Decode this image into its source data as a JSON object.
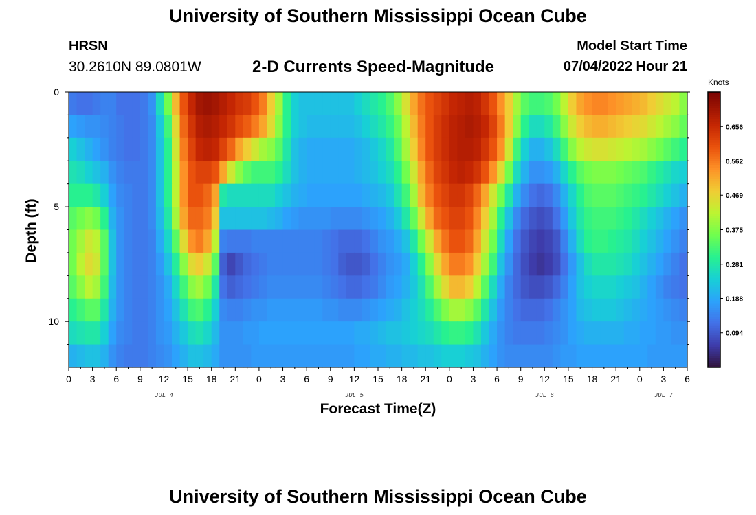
{
  "header": {
    "title": "University of Southern Mississippi Ocean Cube",
    "station": "HRSN",
    "coords": "30.2610N  89.0801W",
    "subtitle": "2-D Currents Speed-Magnitude",
    "start_label": "Model Start Time",
    "start_value": "07/04/2022 Hour 21"
  },
  "footer": {
    "title": "University of Southern Mississippi Ocean Cube"
  },
  "chart_data": {
    "type": "heatmap",
    "title": "2-D Currents Speed-Magnitude",
    "xlabel": "Forecast Time(Z)",
    "ylabel": "Depth (ft)",
    "x_range_hours": [
      0,
      78
    ],
    "y_range_ft": [
      0,
      12
    ],
    "x_tick_labels": [
      "0",
      "3",
      "6",
      "9",
      "12",
      "15",
      "18",
      "21",
      "0",
      "3",
      "6",
      "9",
      "12",
      "15",
      "18",
      "21",
      "0",
      "3",
      "6",
      "9",
      "12",
      "15",
      "18",
      "21",
      "0",
      "3",
      "6"
    ],
    "y_tick_values": [
      0,
      5,
      10
    ],
    "y_tick_labels": [
      "0",
      "5",
      "10"
    ],
    "date_labels": [
      {
        "text": "JUL 4",
        "hour": 12
      },
      {
        "text": "JUL 5",
        "hour": 36
      },
      {
        "text": "JUL 6",
        "hour": 60
      },
      {
        "text": "JUL 7",
        "hour": 75
      }
    ],
    "depth_bins_ft": [
      0.5,
      1.5,
      2.5,
      3.5,
      4.5,
      5.5,
      6.5,
      7.5,
      8.5,
      9.5,
      10.5,
      11.5
    ],
    "speed_knots": [
      [
        0.13,
        0.12,
        0.12,
        0.13,
        0.14,
        0.14,
        0.12,
        0.12,
        0.12,
        0.13,
        0.16,
        0.26,
        0.36,
        0.5,
        0.6,
        0.66,
        0.7,
        0.71,
        0.7,
        0.68,
        0.66,
        0.64,
        0.63,
        0.6,
        0.56,
        0.48,
        0.4,
        0.3,
        0.24,
        0.22,
        0.22,
        0.22,
        0.22,
        0.22,
        0.22,
        0.22,
        0.24,
        0.26,
        0.28,
        0.3,
        0.33,
        0.38,
        0.45,
        0.52,
        0.57,
        0.6,
        0.62,
        0.64,
        0.66,
        0.67,
        0.68,
        0.67,
        0.64,
        0.6,
        0.54,
        0.48,
        0.4,
        0.34,
        0.32,
        0.32,
        0.33,
        0.36,
        0.42,
        0.48,
        0.52,
        0.54,
        0.55,
        0.55,
        0.54,
        0.53,
        0.52,
        0.51,
        0.5,
        0.48,
        0.46,
        0.44,
        0.42,
        0.38
      ],
      [
        0.18,
        0.17,
        0.16,
        0.16,
        0.15,
        0.14,
        0.13,
        0.12,
        0.12,
        0.13,
        0.15,
        0.23,
        0.32,
        0.46,
        0.58,
        0.64,
        0.68,
        0.69,
        0.68,
        0.66,
        0.64,
        0.61,
        0.59,
        0.56,
        0.52,
        0.46,
        0.38,
        0.3,
        0.24,
        0.22,
        0.21,
        0.21,
        0.21,
        0.21,
        0.21,
        0.21,
        0.22,
        0.24,
        0.26,
        0.28,
        0.31,
        0.35,
        0.42,
        0.5,
        0.56,
        0.6,
        0.63,
        0.65,
        0.67,
        0.68,
        0.69,
        0.68,
        0.66,
        0.62,
        0.56,
        0.48,
        0.38,
        0.3,
        0.26,
        0.26,
        0.28,
        0.32,
        0.38,
        0.44,
        0.48,
        0.5,
        0.51,
        0.51,
        0.5,
        0.49,
        0.48,
        0.47,
        0.46,
        0.44,
        0.42,
        0.4,
        0.38,
        0.35
      ],
      [
        0.24,
        0.22,
        0.2,
        0.18,
        0.16,
        0.14,
        0.13,
        0.12,
        0.12,
        0.13,
        0.15,
        0.22,
        0.3,
        0.44,
        0.56,
        0.62,
        0.66,
        0.67,
        0.66,
        0.62,
        0.58,
        0.52,
        0.48,
        0.44,
        0.4,
        0.38,
        0.34,
        0.28,
        0.22,
        0.2,
        0.19,
        0.19,
        0.19,
        0.19,
        0.19,
        0.19,
        0.2,
        0.21,
        0.23,
        0.25,
        0.28,
        0.33,
        0.4,
        0.48,
        0.55,
        0.6,
        0.63,
        0.65,
        0.67,
        0.68,
        0.68,
        0.67,
        0.64,
        0.6,
        0.54,
        0.44,
        0.32,
        0.24,
        0.2,
        0.2,
        0.22,
        0.26,
        0.32,
        0.38,
        0.42,
        0.44,
        0.45,
        0.45,
        0.44,
        0.43,
        0.42,
        0.41,
        0.4,
        0.38,
        0.36,
        0.34,
        0.32,
        0.3
      ],
      [
        0.27,
        0.26,
        0.24,
        0.22,
        0.2,
        0.16,
        0.14,
        0.13,
        0.13,
        0.13,
        0.15,
        0.22,
        0.3,
        0.42,
        0.54,
        0.6,
        0.62,
        0.62,
        0.6,
        0.52,
        0.44,
        0.38,
        0.34,
        0.32,
        0.32,
        0.32,
        0.3,
        0.26,
        0.22,
        0.2,
        0.19,
        0.19,
        0.19,
        0.19,
        0.19,
        0.19,
        0.2,
        0.21,
        0.22,
        0.24,
        0.26,
        0.3,
        0.36,
        0.44,
        0.52,
        0.58,
        0.62,
        0.64,
        0.66,
        0.67,
        0.66,
        0.64,
        0.6,
        0.54,
        0.46,
        0.36,
        0.26,
        0.2,
        0.16,
        0.16,
        0.17,
        0.2,
        0.25,
        0.3,
        0.34,
        0.36,
        0.37,
        0.37,
        0.37,
        0.36,
        0.35,
        0.34,
        0.33,
        0.31,
        0.29,
        0.27,
        0.25,
        0.24
      ],
      [
        0.3,
        0.3,
        0.3,
        0.28,
        0.24,
        0.18,
        0.15,
        0.14,
        0.13,
        0.13,
        0.15,
        0.22,
        0.3,
        0.42,
        0.54,
        0.6,
        0.6,
        0.58,
        0.52,
        0.28,
        0.26,
        0.26,
        0.26,
        0.26,
        0.26,
        0.26,
        0.24,
        0.22,
        0.2,
        0.19,
        0.18,
        0.18,
        0.18,
        0.18,
        0.18,
        0.18,
        0.18,
        0.19,
        0.2,
        0.21,
        0.23,
        0.27,
        0.32,
        0.4,
        0.5,
        0.56,
        0.6,
        0.62,
        0.64,
        0.64,
        0.62,
        0.58,
        0.52,
        0.44,
        0.36,
        0.28,
        0.2,
        0.15,
        0.12,
        0.11,
        0.12,
        0.15,
        0.2,
        0.25,
        0.3,
        0.33,
        0.34,
        0.34,
        0.34,
        0.33,
        0.32,
        0.31,
        0.3,
        0.28,
        0.26,
        0.24,
        0.22,
        0.2
      ],
      [
        0.34,
        0.36,
        0.38,
        0.36,
        0.3,
        0.2,
        0.16,
        0.14,
        0.13,
        0.13,
        0.15,
        0.21,
        0.28,
        0.4,
        0.52,
        0.58,
        0.58,
        0.56,
        0.48,
        0.22,
        0.22,
        0.22,
        0.22,
        0.22,
        0.22,
        0.21,
        0.2,
        0.18,
        0.17,
        0.16,
        0.16,
        0.16,
        0.16,
        0.15,
        0.15,
        0.15,
        0.15,
        0.16,
        0.17,
        0.18,
        0.2,
        0.23,
        0.28,
        0.35,
        0.44,
        0.52,
        0.58,
        0.6,
        0.62,
        0.62,
        0.6,
        0.55,
        0.48,
        0.4,
        0.3,
        0.22,
        0.15,
        0.11,
        0.09,
        0.08,
        0.09,
        0.12,
        0.17,
        0.23,
        0.28,
        0.31,
        0.32,
        0.32,
        0.32,
        0.31,
        0.3,
        0.28,
        0.26,
        0.24,
        0.22,
        0.2,
        0.18,
        0.16
      ],
      [
        0.36,
        0.4,
        0.44,
        0.42,
        0.34,
        0.22,
        0.16,
        0.14,
        0.13,
        0.13,
        0.14,
        0.19,
        0.25,
        0.34,
        0.46,
        0.54,
        0.56,
        0.52,
        0.42,
        0.14,
        0.13,
        0.13,
        0.13,
        0.14,
        0.14,
        0.14,
        0.14,
        0.14,
        0.14,
        0.14,
        0.14,
        0.14,
        0.13,
        0.12,
        0.11,
        0.11,
        0.11,
        0.12,
        0.14,
        0.16,
        0.17,
        0.19,
        0.22,
        0.28,
        0.36,
        0.44,
        0.52,
        0.57,
        0.6,
        0.6,
        0.58,
        0.52,
        0.44,
        0.36,
        0.26,
        0.18,
        0.12,
        0.09,
        0.07,
        0.06,
        0.07,
        0.09,
        0.14,
        0.2,
        0.26,
        0.3,
        0.31,
        0.31,
        0.3,
        0.29,
        0.28,
        0.26,
        0.24,
        0.22,
        0.2,
        0.18,
        0.16,
        0.14
      ],
      [
        0.36,
        0.42,
        0.46,
        0.44,
        0.34,
        0.22,
        0.16,
        0.14,
        0.13,
        0.13,
        0.14,
        0.17,
        0.22,
        0.29,
        0.38,
        0.46,
        0.48,
        0.44,
        0.34,
        0.1,
        0.07,
        0.09,
        0.11,
        0.12,
        0.13,
        0.14,
        0.14,
        0.14,
        0.14,
        0.14,
        0.14,
        0.14,
        0.13,
        0.12,
        0.1,
        0.09,
        0.09,
        0.1,
        0.12,
        0.14,
        0.16,
        0.17,
        0.19,
        0.24,
        0.3,
        0.38,
        0.46,
        0.52,
        0.56,
        0.56,
        0.54,
        0.48,
        0.4,
        0.32,
        0.22,
        0.16,
        0.11,
        0.08,
        0.06,
        0.05,
        0.06,
        0.08,
        0.12,
        0.17,
        0.22,
        0.26,
        0.28,
        0.28,
        0.28,
        0.27,
        0.26,
        0.24,
        0.22,
        0.2,
        0.18,
        0.16,
        0.14,
        0.12
      ],
      [
        0.34,
        0.38,
        0.42,
        0.4,
        0.32,
        0.21,
        0.16,
        0.14,
        0.13,
        0.13,
        0.14,
        0.16,
        0.19,
        0.25,
        0.32,
        0.38,
        0.4,
        0.36,
        0.28,
        0.12,
        0.1,
        0.11,
        0.12,
        0.13,
        0.14,
        0.15,
        0.15,
        0.15,
        0.15,
        0.15,
        0.15,
        0.15,
        0.14,
        0.13,
        0.12,
        0.11,
        0.11,
        0.12,
        0.13,
        0.15,
        0.17,
        0.18,
        0.2,
        0.23,
        0.27,
        0.33,
        0.4,
        0.46,
        0.5,
        0.5,
        0.48,
        0.42,
        0.34,
        0.26,
        0.19,
        0.14,
        0.11,
        0.09,
        0.08,
        0.08,
        0.09,
        0.11,
        0.14,
        0.18,
        0.22,
        0.24,
        0.25,
        0.25,
        0.25,
        0.24,
        0.23,
        0.22,
        0.2,
        0.18,
        0.16,
        0.14,
        0.13,
        0.12
      ],
      [
        0.3,
        0.32,
        0.34,
        0.34,
        0.28,
        0.2,
        0.16,
        0.14,
        0.13,
        0.13,
        0.14,
        0.16,
        0.18,
        0.22,
        0.27,
        0.32,
        0.33,
        0.3,
        0.24,
        0.15,
        0.14,
        0.14,
        0.15,
        0.16,
        0.16,
        0.17,
        0.17,
        0.17,
        0.17,
        0.17,
        0.17,
        0.17,
        0.16,
        0.16,
        0.15,
        0.15,
        0.15,
        0.16,
        0.17,
        0.18,
        0.19,
        0.2,
        0.22,
        0.24,
        0.26,
        0.29,
        0.33,
        0.37,
        0.4,
        0.4,
        0.38,
        0.34,
        0.28,
        0.22,
        0.17,
        0.14,
        0.12,
        0.11,
        0.11,
        0.11,
        0.12,
        0.14,
        0.16,
        0.18,
        0.21,
        0.22,
        0.23,
        0.23,
        0.23,
        0.22,
        0.21,
        0.2,
        0.19,
        0.18,
        0.17,
        0.16,
        0.15,
        0.14
      ],
      [
        0.26,
        0.27,
        0.28,
        0.28,
        0.24,
        0.18,
        0.15,
        0.14,
        0.13,
        0.13,
        0.14,
        0.16,
        0.17,
        0.2,
        0.23,
        0.26,
        0.27,
        0.25,
        0.21,
        0.16,
        0.16,
        0.16,
        0.17,
        0.17,
        0.18,
        0.18,
        0.18,
        0.18,
        0.18,
        0.18,
        0.18,
        0.18,
        0.18,
        0.18,
        0.18,
        0.18,
        0.19,
        0.19,
        0.2,
        0.21,
        0.22,
        0.22,
        0.23,
        0.24,
        0.25,
        0.26,
        0.28,
        0.3,
        0.31,
        0.31,
        0.3,
        0.27,
        0.23,
        0.19,
        0.16,
        0.14,
        0.13,
        0.13,
        0.13,
        0.13,
        0.14,
        0.15,
        0.16,
        0.18,
        0.19,
        0.2,
        0.2,
        0.2,
        0.2,
        0.2,
        0.19,
        0.19,
        0.18,
        0.18,
        0.17,
        0.17,
        0.16,
        0.16
      ],
      [
        0.2,
        0.21,
        0.22,
        0.22,
        0.2,
        0.16,
        0.14,
        0.13,
        0.13,
        0.13,
        0.14,
        0.15,
        0.16,
        0.18,
        0.2,
        0.22,
        0.22,
        0.21,
        0.19,
        0.16,
        0.16,
        0.16,
        0.16,
        0.17,
        0.17,
        0.17,
        0.17,
        0.17,
        0.17,
        0.17,
        0.17,
        0.17,
        0.17,
        0.17,
        0.17,
        0.17,
        0.18,
        0.18,
        0.19,
        0.19,
        0.2,
        0.2,
        0.21,
        0.21,
        0.22,
        0.22,
        0.23,
        0.24,
        0.24,
        0.24,
        0.23,
        0.22,
        0.2,
        0.18,
        0.16,
        0.15,
        0.15,
        0.15,
        0.15,
        0.15,
        0.15,
        0.16,
        0.17,
        0.17,
        0.18,
        0.18,
        0.18,
        0.18,
        0.18,
        0.18,
        0.18,
        0.18,
        0.18,
        0.17,
        0.17,
        0.17,
        0.17,
        0.17
      ]
    ],
    "colorbar": {
      "units": "Knots",
      "range": [
        0.0,
        0.75
      ],
      "tick_values": [
        0.094,
        0.188,
        0.281,
        0.375,
        0.469,
        0.562,
        0.656
      ],
      "tick_labels": [
        "0.094",
        "0.188",
        "0.281",
        "0.375",
        "0.469",
        "0.562",
        "0.656"
      ]
    }
  }
}
